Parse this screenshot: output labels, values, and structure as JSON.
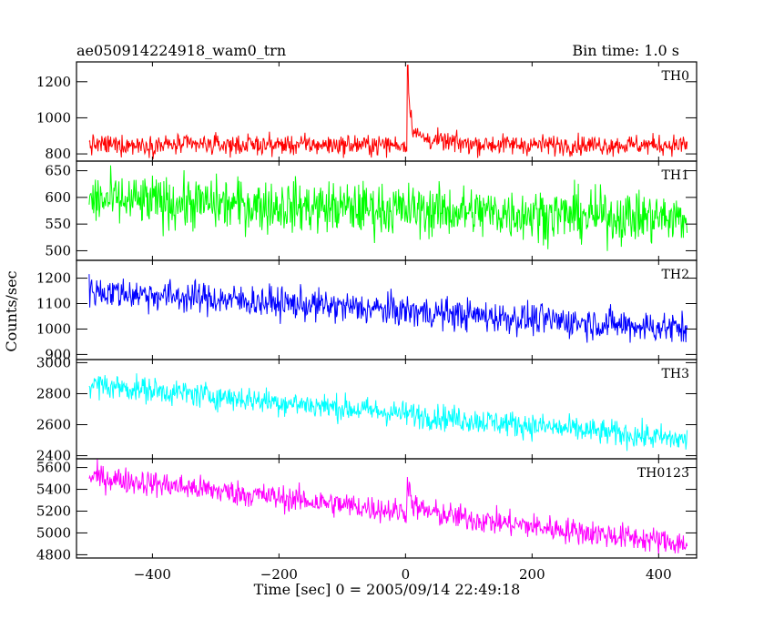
{
  "header": {
    "left_title": "ae050914224918_wam0_trn",
    "right_title": "Bin time: 1.0 s"
  },
  "chart_data": {
    "type": "line",
    "title": "ae050914224918_wam0_trn",
    "subtitle": "Bin time: 1.0 s",
    "xlabel": "Time [sec] 0 = 2005/09/14 22:49:18",
    "ylabel": "Counts/sec",
    "xlim": [
      -520,
      460
    ],
    "x_ticks": [
      -400,
      -200,
      0,
      200,
      400
    ],
    "x_range": [
      -500,
      445
    ],
    "bin_time_s": 1.0,
    "grid": false,
    "panels": [
      {
        "name": "TH0",
        "color": "#ff0000",
        "ylim": [
          760,
          1310
        ],
        "y_ticks": [
          800,
          1000,
          1200
        ],
        "level_start": 850,
        "level_end": 850,
        "noise": 40,
        "burst": {
          "t0": 3,
          "peak": 400
        }
      },
      {
        "name": "TH1",
        "color": "#00ff00",
        "ylim": [
          482,
          668
        ],
        "y_ticks": [
          500,
          550,
          600,
          650
        ],
        "level_start": 595,
        "level_end": 560,
        "noise": 35
      },
      {
        "name": "TH2",
        "color": "#0000ff",
        "ylim": [
          880,
          1270
        ],
        "y_ticks": [
          900,
          1000,
          1100,
          1200
        ],
        "level_start": 1150,
        "level_end": 1000,
        "noise": 45
      },
      {
        "name": "TH3",
        "color": "#00ffff",
        "ylim": [
          2380,
          3020
        ],
        "y_ticks": [
          2400,
          2600,
          2800,
          3000
        ],
        "level_start": 2860,
        "level_end": 2500,
        "noise": 60
      },
      {
        "name": "TH0123",
        "color": "#ff00ff",
        "ylim": [
          4770,
          5680
        ],
        "y_ticks": [
          4800,
          5000,
          5200,
          5400,
          5600
        ],
        "level_start": 5520,
        "level_end": 4900,
        "noise": 85,
        "burst": {
          "t0": 3,
          "peak": 330
        }
      }
    ]
  }
}
